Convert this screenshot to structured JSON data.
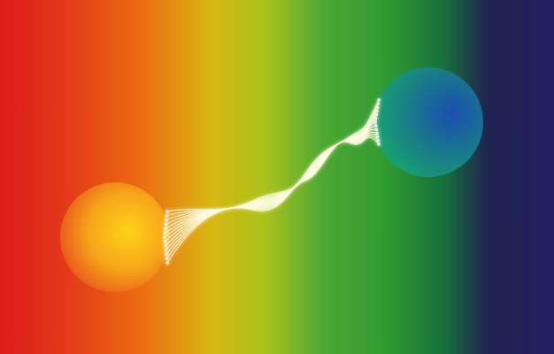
{
  "scene": {
    "description_icon": "entangled-spheres-illustration",
    "palette": {
      "red": "#dd1c1a",
      "orange": "#ec6a12",
      "yellow": "#d8b612",
      "yellow_green": "#a8c21c",
      "green": "#2f9a32",
      "teal": "#18703e",
      "navy": "#1f2350",
      "indigo": "#241f62",
      "warm_sphere_core": "#ffd21a",
      "warm_sphere_edge": "#e8561a",
      "cool_sphere_core": "#1a4fb0",
      "cool_sphere_edge": "#18a070",
      "strand_color": "#fffbe0",
      "strand_tip_cool": "#9ff0f0"
    }
  }
}
